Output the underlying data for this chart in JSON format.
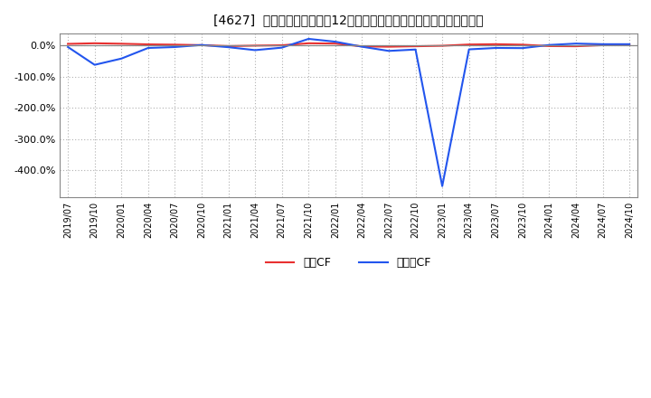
{
  "title": "[4627]  キャッシュフローの12か月移動合計の対前年同期増減率の推移",
  "background_color": "#ffffff",
  "plot_bg_color": "#ffffff",
  "grid_color": "#b0b0b0",
  "x_labels": [
    "2019/07",
    "2019/10",
    "2020/01",
    "2020/04",
    "2020/07",
    "2020/10",
    "2021/01",
    "2021/04",
    "2021/07",
    "2021/10",
    "2022/01",
    "2022/04",
    "2022/07",
    "2022/10",
    "2023/01",
    "2023/04",
    "2023/07",
    "2023/10",
    "2024/01",
    "2024/04",
    "2024/07",
    "2024/10"
  ],
  "operating_cf": [
    0.05,
    0.07,
    0.055,
    0.035,
    0.025,
    0.01,
    -0.02,
    -0.005,
    0.005,
    0.07,
    0.06,
    -0.03,
    -0.04,
    -0.025,
    -0.01,
    0.03,
    0.04,
    0.025,
    -0.02,
    -0.025,
    0.01,
    0.035
  ],
  "free_cf": [
    -0.05,
    -0.62,
    -0.42,
    -0.08,
    -0.05,
    0.015,
    -0.055,
    -0.15,
    -0.07,
    0.21,
    0.12,
    -0.04,
    -0.175,
    -0.13,
    -4.5,
    -0.125,
    -0.08,
    -0.085,
    0.015,
    0.06,
    0.04,
    0.04
  ],
  "operating_color": "#e83030",
  "free_color": "#2255ee",
  "ylim_min": -4.85,
  "ylim_max": 0.38,
  "yticks": [
    0.0,
    -1.0,
    -2.0,
    -3.0,
    -4.0
  ],
  "legend_labels": [
    "営業CF",
    "フリーCF"
  ]
}
